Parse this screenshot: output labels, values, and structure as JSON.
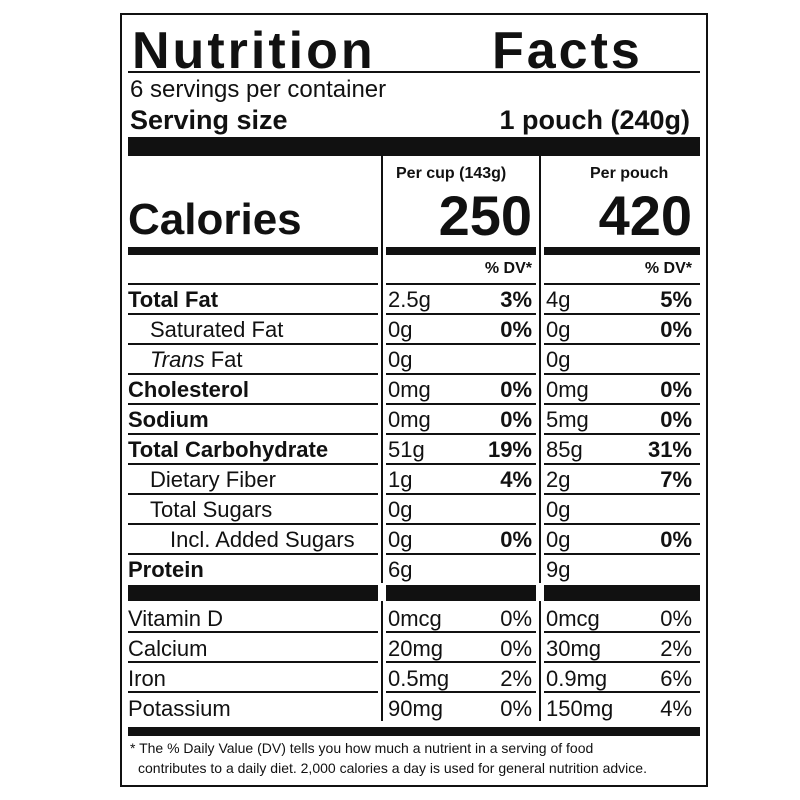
{
  "title_word1": "Nutrition",
  "title_word2": "Facts",
  "servings_per_container": "6 servings per container",
  "serving_size_label": "Serving size",
  "serving_size_value": "1 pouch (240g)",
  "columns": {
    "col1_header": "Per cup (143g)",
    "col2_header": "Per pouch"
  },
  "calories": {
    "label": "Calories",
    "col1": "250",
    "col2": "420"
  },
  "dv_header": "% DV*",
  "nutrients": [
    {
      "label": "Total Fat",
      "bold": true,
      "indent": 0,
      "c1_amt": "2.5g",
      "c1_dv": "3%",
      "c2_amt": "4g",
      "c2_dv": "5%"
    },
    {
      "label": "Saturated Fat",
      "bold": false,
      "indent": 1,
      "c1_amt": "0g",
      "c1_dv": "0%",
      "c2_amt": "0g",
      "c2_dv": "0%"
    },
    {
      "label": "Trans Fat",
      "label_italic_part": "Trans",
      "label_rest": " Fat",
      "bold": false,
      "indent": 1,
      "c1_amt": "0g",
      "c1_dv": "",
      "c2_amt": "0g",
      "c2_dv": ""
    },
    {
      "label": "Cholesterol",
      "bold": true,
      "indent": 0,
      "c1_amt": "0mg",
      "c1_dv": "0%",
      "c2_amt": "0mg",
      "c2_dv": "0%"
    },
    {
      "label": "Sodium",
      "bold": true,
      "indent": 0,
      "c1_amt": "0mg",
      "c1_dv": "0%",
      "c2_amt": "5mg",
      "c2_dv": "0%"
    },
    {
      "label": "Total Carbohydrate",
      "bold": true,
      "indent": 0,
      "c1_amt": "51g",
      "c1_dv": "19%",
      "c2_amt": "85g",
      "c2_dv": "31%"
    },
    {
      "label": "Dietary Fiber",
      "bold": false,
      "indent": 1,
      "c1_amt": "1g",
      "c1_dv": "4%",
      "c2_amt": "2g",
      "c2_dv": "7%"
    },
    {
      "label": "Total Sugars",
      "bold": false,
      "indent": 1,
      "c1_amt": "0g",
      "c1_dv": "",
      "c2_amt": "0g",
      "c2_dv": ""
    },
    {
      "label": "Incl. Added Sugars",
      "bold": false,
      "indent": 2,
      "c1_amt": "0g",
      "c1_dv": "0%",
      "c2_amt": "0g",
      "c2_dv": "0%"
    },
    {
      "label": "Protein",
      "bold": true,
      "indent": 0,
      "c1_amt": "6g",
      "c1_dv": "",
      "c2_amt": "9g",
      "c2_dv": ""
    }
  ],
  "vitamins": [
    {
      "label": "Vitamin D",
      "c1_amt": "0mcg",
      "c1_dv": "0%",
      "c2_amt": "0mcg",
      "c2_dv": "0%"
    },
    {
      "label": "Calcium",
      "c1_amt": "20mg",
      "c1_dv": "0%",
      "c2_amt": "30mg",
      "c2_dv": "2%"
    },
    {
      "label": "Iron",
      "c1_amt": "0.5mg",
      "c1_dv": "2%",
      "c2_amt": "0.9mg",
      "c2_dv": "6%"
    },
    {
      "label": "Potassium",
      "c1_amt": "90mg",
      "c1_dv": "0%",
      "c2_amt": "150mg",
      "c2_dv": "4%"
    }
  ],
  "footnote_line1": "* The % Daily Value (DV) tells you how much a nutrient in a serving of food",
  "footnote_line2": "contributes to a daily diet. 2,000 calories a day is used for general nutrition advice."
}
